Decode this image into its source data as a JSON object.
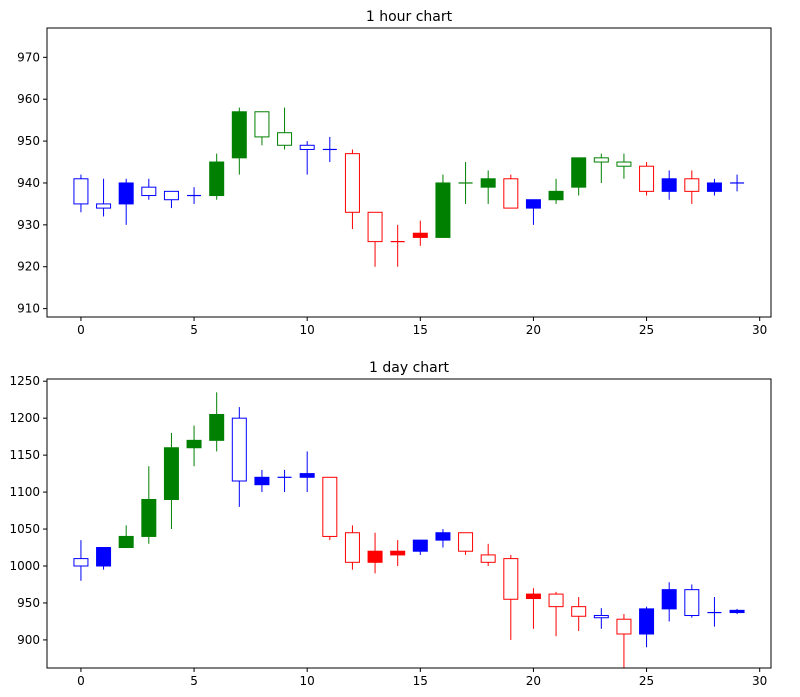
{
  "chart_data": [
    {
      "type": "candlestick",
      "title": "1 hour chart",
      "xlabel": "",
      "ylabel": "",
      "xlim": [
        -1.5,
        30.5
      ],
      "ylim": [
        908,
        977
      ],
      "x_ticks": [
        0,
        5,
        10,
        15,
        20,
        25,
        30
      ],
      "y_ticks": [
        910,
        920,
        930,
        940,
        950,
        960,
        970
      ],
      "grid": false,
      "colors": {
        "blue": "#0000ff",
        "green": "#008000",
        "red": "#ff0000"
      },
      "candles": [
        {
          "x": 0,
          "open": 935,
          "close": 941,
          "high": 942,
          "low": 933,
          "color": "blue",
          "filled": false
        },
        {
          "x": 1,
          "open": 935,
          "close": 934,
          "high": 941,
          "low": 932,
          "color": "blue",
          "filled": false
        },
        {
          "x": 2,
          "open": 940,
          "close": 935,
          "high": 941,
          "low": 930,
          "color": "blue",
          "filled": true
        },
        {
          "x": 3,
          "open": 937,
          "close": 939,
          "high": 941,
          "low": 936,
          "color": "blue",
          "filled": false
        },
        {
          "x": 4,
          "open": 936,
          "close": 938,
          "high": 938,
          "low": 934,
          "color": "blue",
          "filled": false
        },
        {
          "x": 5,
          "open": 937,
          "close": 937,
          "high": 939,
          "low": 935,
          "color": "blue",
          "filled": false
        },
        {
          "x": 6,
          "open": 937,
          "close": 945,
          "high": 947,
          "low": 936,
          "color": "green",
          "filled": true
        },
        {
          "x": 7,
          "open": 946,
          "close": 957,
          "high": 958,
          "low": 942,
          "color": "green",
          "filled": true
        },
        {
          "x": 8,
          "open": 951,
          "close": 957,
          "high": 957,
          "low": 949,
          "color": "green",
          "filled": false
        },
        {
          "x": 9,
          "open": 949,
          "close": 952,
          "high": 958,
          "low": 948,
          "color": "green",
          "filled": false
        },
        {
          "x": 10,
          "open": 948,
          "close": 949,
          "high": 950,
          "low": 942,
          "color": "blue",
          "filled": false
        },
        {
          "x": 11,
          "open": 948,
          "close": 948,
          "high": 951,
          "low": 945,
          "color": "blue",
          "filled": false
        },
        {
          "x": 12,
          "open": 947,
          "close": 933,
          "high": 948,
          "low": 929,
          "color": "red",
          "filled": false
        },
        {
          "x": 13,
          "open": 933,
          "close": 926,
          "high": 933,
          "low": 920,
          "color": "red",
          "filled": false
        },
        {
          "x": 14,
          "open": 926,
          "close": 926,
          "high": 930,
          "low": 920,
          "color": "red",
          "filled": false
        },
        {
          "x": 15,
          "open": 928,
          "close": 927,
          "high": 931,
          "low": 925,
          "color": "red",
          "filled": true
        },
        {
          "x": 16,
          "open": 927,
          "close": 940,
          "high": 942,
          "low": 927,
          "color": "green",
          "filled": true
        },
        {
          "x": 17,
          "open": 940,
          "close": 940,
          "high": 945,
          "low": 935,
          "color": "green",
          "filled": false
        },
        {
          "x": 18,
          "open": 939,
          "close": 941,
          "high": 943,
          "low": 935,
          "color": "green",
          "filled": true
        },
        {
          "x": 19,
          "open": 941,
          "close": 934,
          "high": 942,
          "low": 934,
          "color": "red",
          "filled": false
        },
        {
          "x": 20,
          "open": 936,
          "close": 934,
          "high": 936,
          "low": 930,
          "color": "blue",
          "filled": true
        },
        {
          "x": 21,
          "open": 936,
          "close": 938,
          "high": 941,
          "low": 935,
          "color": "green",
          "filled": true
        },
        {
          "x": 22,
          "open": 939,
          "close": 946,
          "high": 946,
          "low": 937,
          "color": "green",
          "filled": true
        },
        {
          "x": 23,
          "open": 945,
          "close": 946,
          "high": 947,
          "low": 940,
          "color": "green",
          "filled": false
        },
        {
          "x": 24,
          "open": 944,
          "close": 945,
          "high": 947,
          "low": 941,
          "color": "green",
          "filled": false
        },
        {
          "x": 25,
          "open": 944,
          "close": 938,
          "high": 945,
          "low": 937,
          "color": "red",
          "filled": false
        },
        {
          "x": 26,
          "open": 941,
          "close": 938,
          "high": 943,
          "low": 936,
          "color": "blue",
          "filled": true
        },
        {
          "x": 27,
          "open": 941,
          "close": 938,
          "high": 943,
          "low": 935,
          "color": "red",
          "filled": false
        },
        {
          "x": 28,
          "open": 940,
          "close": 938,
          "high": 941,
          "low": 937,
          "color": "blue",
          "filled": true
        },
        {
          "x": 29,
          "open": 940,
          "close": 940,
          "high": 942,
          "low": 938,
          "color": "blue",
          "filled": false
        }
      ]
    },
    {
      "type": "candlestick",
      "title": "1 day chart",
      "xlabel": "",
      "ylabel": "",
      "xlim": [
        -1.5,
        30.5
      ],
      "ylim": [
        862,
        1253
      ],
      "x_ticks": [
        0,
        5,
        10,
        15,
        20,
        25,
        30
      ],
      "y_ticks": [
        900,
        950,
        1000,
        1050,
        1100,
        1150,
        1200,
        1250
      ],
      "grid": false,
      "colors": {
        "blue": "#0000ff",
        "green": "#008000",
        "red": "#ff0000"
      },
      "candles": [
        {
          "x": 0,
          "open": 1000,
          "close": 1010,
          "high": 1035,
          "low": 980,
          "color": "blue",
          "filled": false
        },
        {
          "x": 1,
          "open": 1000,
          "close": 1025,
          "high": 1025,
          "low": 995,
          "color": "blue",
          "filled": true
        },
        {
          "x": 2,
          "open": 1025,
          "close": 1040,
          "high": 1055,
          "low": 1025,
          "color": "green",
          "filled": true
        },
        {
          "x": 3,
          "open": 1040,
          "close": 1090,
          "high": 1135,
          "low": 1030,
          "color": "green",
          "filled": true
        },
        {
          "x": 4,
          "open": 1090,
          "close": 1160,
          "high": 1180,
          "low": 1050,
          "color": "green",
          "filled": true
        },
        {
          "x": 5,
          "open": 1160,
          "close": 1170,
          "high": 1190,
          "low": 1135,
          "color": "green",
          "filled": true
        },
        {
          "x": 6,
          "open": 1170,
          "close": 1205,
          "high": 1235,
          "low": 1155,
          "color": "green",
          "filled": true
        },
        {
          "x": 7,
          "open": 1115,
          "close": 1200,
          "high": 1215,
          "low": 1080,
          "color": "blue",
          "filled": false
        },
        {
          "x": 8,
          "open": 1120,
          "close": 1110,
          "high": 1130,
          "low": 1100,
          "color": "blue",
          "filled": true
        },
        {
          "x": 9,
          "open": 1120,
          "close": 1120,
          "high": 1130,
          "low": 1100,
          "color": "blue",
          "filled": false
        },
        {
          "x": 10,
          "open": 1125,
          "close": 1120,
          "high": 1155,
          "low": 1100,
          "color": "blue",
          "filled": true
        },
        {
          "x": 11,
          "open": 1120,
          "close": 1040,
          "high": 1120,
          "low": 1035,
          "color": "red",
          "filled": false
        },
        {
          "x": 12,
          "open": 1045,
          "close": 1005,
          "high": 1055,
          "low": 995,
          "color": "red",
          "filled": false
        },
        {
          "x": 13,
          "open": 1020,
          "close": 1005,
          "high": 1045,
          "low": 990,
          "color": "red",
          "filled": true
        },
        {
          "x": 14,
          "open": 1020,
          "close": 1015,
          "high": 1035,
          "low": 1000,
          "color": "red",
          "filled": true
        },
        {
          "x": 15,
          "open": 1020,
          "close": 1035,
          "high": 1035,
          "low": 1015,
          "color": "blue",
          "filled": true
        },
        {
          "x": 16,
          "open": 1035,
          "close": 1045,
          "high": 1050,
          "low": 1025,
          "color": "blue",
          "filled": true
        },
        {
          "x": 17,
          "open": 1045,
          "close": 1020,
          "high": 1045,
          "low": 1015,
          "color": "red",
          "filled": false
        },
        {
          "x": 18,
          "open": 1015,
          "close": 1005,
          "high": 1030,
          "low": 1000,
          "color": "red",
          "filled": false
        },
        {
          "x": 19,
          "open": 1010,
          "close": 955,
          "high": 1015,
          "low": 900,
          "color": "red",
          "filled": false
        },
        {
          "x": 20,
          "open": 962,
          "close": 956,
          "high": 970,
          "low": 915,
          "color": "red",
          "filled": true
        },
        {
          "x": 21,
          "open": 962,
          "close": 945,
          "high": 965,
          "low": 905,
          "color": "red",
          "filled": false
        },
        {
          "x": 22,
          "open": 945,
          "close": 932,
          "high": 958,
          "low": 912,
          "color": "red",
          "filled": false
        },
        {
          "x": 23,
          "open": 933,
          "close": 930,
          "high": 943,
          "low": 915,
          "color": "blue",
          "filled": false
        },
        {
          "x": 24,
          "open": 928,
          "close": 908,
          "high": 935,
          "low": 862,
          "color": "red",
          "filled": false
        },
        {
          "x": 25,
          "open": 908,
          "close": 942,
          "high": 945,
          "low": 890,
          "color": "blue",
          "filled": true
        },
        {
          "x": 26,
          "open": 942,
          "close": 968,
          "high": 978,
          "low": 925,
          "color": "blue",
          "filled": true
        },
        {
          "x": 27,
          "open": 933,
          "close": 968,
          "high": 975,
          "low": 930,
          "color": "blue",
          "filled": false
        },
        {
          "x": 28,
          "open": 937,
          "close": 937,
          "high": 958,
          "low": 918,
          "color": "blue",
          "filled": false
        },
        {
          "x": 29,
          "open": 937,
          "close": 940,
          "high": 942,
          "low": 935,
          "color": "blue",
          "filled": true
        }
      ]
    }
  ]
}
